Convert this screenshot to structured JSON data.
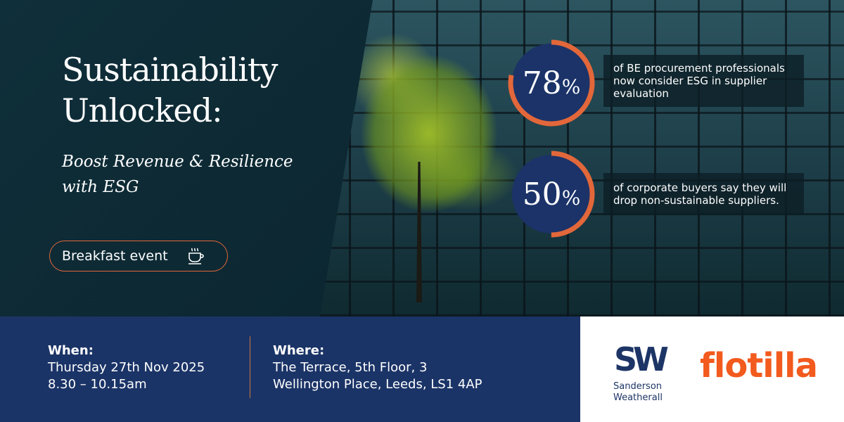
{
  "headline": {
    "line1": "Sustainability",
    "line2": "Unlocked:"
  },
  "subheadline": {
    "line1": "Boost Revenue & Resilience",
    "line2": "with ESG"
  },
  "event_badge": {
    "label": "Breakfast event",
    "icon": "coffee-cup-icon"
  },
  "stats": [
    {
      "value": "78",
      "unit": "%",
      "fraction": 0.78,
      "text_line1": "of BE procurement professionals",
      "text_line2": "now consider ESG in supplier",
      "text_line3": "evaluation"
    },
    {
      "value": "50",
      "unit": "%",
      "fraction": 0.5,
      "text_line1": "of corporate buyers say they will",
      "text_line2": "drop non-sustainable suppliers."
    }
  ],
  "when": {
    "label": "When:",
    "date": "Thursday 27th Nov 2025",
    "time": "8.30 – 10.15am"
  },
  "where": {
    "label": "Where:",
    "line1": "The Terrace, 5th Floor, 3",
    "line2": "Wellington Place, Leeds, LS1 4AP"
  },
  "logos": {
    "sw_mark": "SW",
    "sw_line1": "Sanderson",
    "sw_line2": "Weatherall",
    "flotilla": "flotilla"
  },
  "colors": {
    "navy": "#1b3467",
    "orange": "#e2673a",
    "flotilla_orange": "#f25a1e"
  }
}
